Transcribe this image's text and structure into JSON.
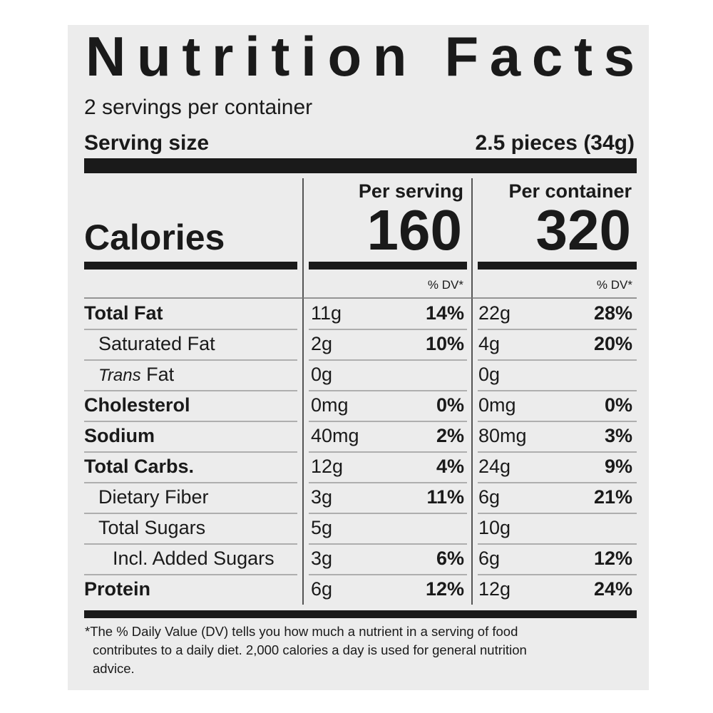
{
  "title": "Nutrition Facts",
  "servings": "2 servings per container",
  "serving_size": {
    "label": "Serving size",
    "value": "2.5 pieces (34g)"
  },
  "calories": {
    "label": "Calories",
    "columns": [
      {
        "header": "Per serving",
        "value": "160",
        "dv_label": "% DV*"
      },
      {
        "header": "Per container",
        "value": "320",
        "dv_label": "% DV*"
      }
    ]
  },
  "rows": [
    {
      "name": "Total Fat",
      "bold": true,
      "indent": 0,
      "values": [
        [
          "11g",
          "14%"
        ],
        [
          "22g",
          "28%"
        ]
      ]
    },
    {
      "name": "Saturated Fat",
      "bold": false,
      "indent": 1,
      "values": [
        [
          "2g",
          "10%"
        ],
        [
          "4g",
          "20%"
        ]
      ]
    },
    {
      "name_italic": "Trans",
      "name": " Fat",
      "bold": false,
      "indent": 1,
      "values": [
        [
          "0g"
        ],
        [
          "0g"
        ]
      ]
    },
    {
      "name": "Cholesterol",
      "bold": true,
      "indent": 0,
      "values": [
        [
          "0mg",
          "0%"
        ],
        [
          "0mg",
          "0%"
        ]
      ]
    },
    {
      "name": "Sodium",
      "bold": true,
      "indent": 0,
      "values": [
        [
          "40mg",
          "2%"
        ],
        [
          "80mg",
          "3%"
        ]
      ]
    },
    {
      "name": "Total Carbs.",
      "bold": true,
      "indent": 0,
      "values": [
        [
          "12g",
          "4%"
        ],
        [
          "24g",
          "9%"
        ]
      ]
    },
    {
      "name": "Dietary Fiber",
      "bold": false,
      "indent": 1,
      "values": [
        [
          "3g",
          "11%"
        ],
        [
          "6g",
          "21%"
        ]
      ]
    },
    {
      "name": "Total Sugars",
      "bold": false,
      "indent": 1,
      "values": [
        [
          "5g"
        ],
        [
          "10g"
        ]
      ]
    },
    {
      "name": "Incl. Added Sugars",
      "bold": false,
      "indent": 2,
      "values": [
        [
          "3g",
          "6%"
        ],
        [
          "6g",
          "12%"
        ]
      ]
    },
    {
      "name": "Protein",
      "bold": true,
      "indent": 0,
      "values": [
        [
          "6g",
          "12%"
        ],
        [
          "12g",
          "24%"
        ]
      ]
    }
  ],
  "footnote": [
    "*The % Daily Value (DV) tells you how much a nutrient in a serving of food",
    "contributes to a daily diet. 2,000 calories a day is used for general nutrition",
    "advice."
  ]
}
